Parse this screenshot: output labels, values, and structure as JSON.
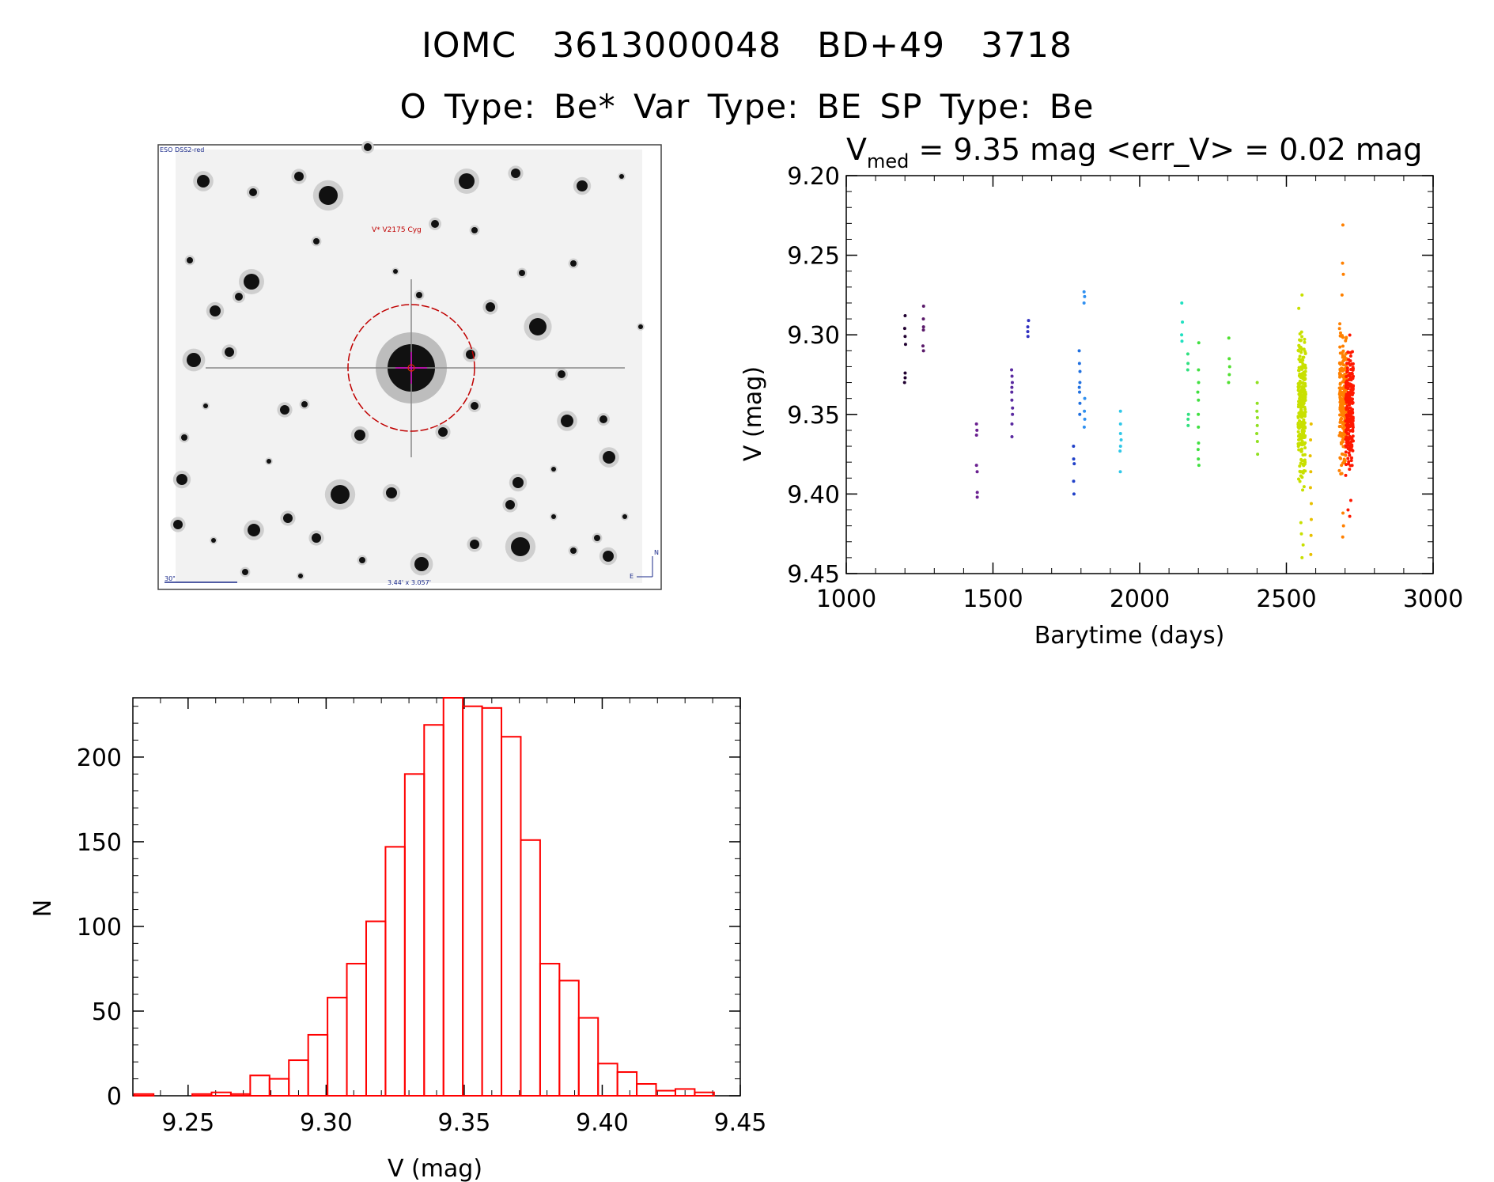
{
  "header": {
    "line1": "IOMC 3613000048   BD+49  3718",
    "line2": "O Type: Be*  Var Type: BE  SP Type: Be"
  },
  "sky_image": {
    "survey_label": "ESO DSS2-red",
    "target_label": "V* V2175 Cyg",
    "scale_label": "30\"",
    "fov_label": "3.44' x 3.057'",
    "north_label": "N",
    "east_label": "E",
    "circle_color": "#c00000"
  },
  "chart_data": [
    {
      "type": "scatter",
      "title_prefix": "V",
      "title_subscript": "med",
      "title_rest": " = 9.35 mag <err_V> = 0.02 mag",
      "xlabel": "Barytime (days)",
      "ylabel": "V (mag)",
      "xlim": [
        1000,
        3000
      ],
      "ylim": [
        9.2,
        9.45
      ],
      "y_inverted": true,
      "xticks": [
        "1000",
        "1500",
        "2000",
        "2500",
        "3000"
      ],
      "yticks": [
        "9.20",
        "9.25",
        "9.30",
        "9.35",
        "9.40",
        "9.45"
      ],
      "grid": false,
      "groups": [
        {
          "x": 1200,
          "color": "#200030",
          "y": [
            9.288,
            9.296,
            9.301,
            9.306,
            9.324,
            9.327,
            9.33
          ]
        },
        {
          "x": 1262,
          "color": "#5a1a6a",
          "y": [
            9.282,
            9.29,
            9.295,
            9.297,
            9.307,
            9.31
          ]
        },
        {
          "x": 1445,
          "color": "#6a2090",
          "y": [
            9.356,
            9.36,
            9.363,
            9.382,
            9.386,
            9.399,
            9.402
          ]
        },
        {
          "x": 1565,
          "color": "#5a2aa0",
          "y": [
            9.322,
            9.326,
            9.33,
            9.333,
            9.336,
            9.341,
            9.346,
            9.35,
            9.356,
            9.364
          ]
        },
        {
          "x": 1620,
          "color": "#3030c0",
          "y": [
            9.291,
            9.295,
            9.298,
            9.301
          ]
        },
        {
          "x": 1775,
          "color": "#2040c8",
          "y": [
            9.37,
            9.378,
            9.381,
            9.392,
            9.4
          ]
        },
        {
          "x": 1795,
          "color": "#2070e0",
          "y": [
            9.31,
            9.318,
            9.323,
            9.33,
            9.333,
            9.336,
            9.343,
            9.35
          ]
        },
        {
          "x": 1812,
          "color": "#3090f0",
          "y": [
            9.273,
            9.276,
            9.28,
            9.34,
            9.348,
            9.353,
            9.358
          ]
        },
        {
          "x": 1935,
          "color": "#30c8e8",
          "y": [
            9.348,
            9.356,
            9.362,
            9.366,
            9.37,
            9.373,
            9.386
          ]
        },
        {
          "x": 2145,
          "color": "#20e0c0",
          "y": [
            9.28,
            9.292,
            9.3,
            9.304
          ]
        },
        {
          "x": 2165,
          "color": "#30e080",
          "y": [
            9.312,
            9.318,
            9.322,
            9.35,
            9.353,
            9.357
          ]
        },
        {
          "x": 2200,
          "color": "#40e040",
          "y": [
            9.305,
            9.322,
            9.33,
            9.336,
            9.341,
            9.35,
            9.358,
            9.368,
            9.372,
            9.378,
            9.382
          ]
        },
        {
          "x": 2305,
          "color": "#50e030",
          "y": [
            9.302,
            9.315,
            9.32,
            9.325,
            9.33
          ]
        },
        {
          "x": 2400,
          "color": "#90e020",
          "y": [
            9.33,
            9.343,
            9.348,
            9.352,
            9.357,
            9.362,
            9.367,
            9.375
          ]
        },
        {
          "x": 2553,
          "color": "#c8e000",
          "dense": true,
          "ymin": 9.28,
          "ymax": 9.41,
          "n": 260,
          "outliers": [
            9.275,
            9.418,
            9.425,
            9.432,
            9.44
          ]
        },
        {
          "x": 2583,
          "color": "#e8c000",
          "y": [
            9.356,
            9.366,
            9.376,
            9.386,
            9.396,
            9.406,
            9.416,
            9.426,
            9.438
          ]
        },
        {
          "x": 2693,
          "color": "#ff8000",
          "dense": true,
          "ymin": 9.285,
          "ymax": 9.4,
          "n": 200,
          "outliers": [
            9.231,
            9.255,
            9.262,
            9.275,
            9.412,
            9.42,
            9.427
          ]
        },
        {
          "x": 2715,
          "color": "#ff1800",
          "dense": true,
          "ymin": 9.29,
          "ymax": 9.397,
          "n": 220,
          "outliers": [
            9.404,
            9.41,
            9.414
          ]
        }
      ]
    },
    {
      "type": "bar",
      "xlabel": "V (mag)",
      "ylabel": "N",
      "xlim": [
        9.23,
        9.45
      ],
      "ylim": [
        0,
        235
      ],
      "xticks": [
        "9.25",
        "9.30",
        "9.35",
        "9.40",
        "9.45"
      ],
      "yticks": [
        "0",
        "50",
        "100",
        "150",
        "200"
      ],
      "bar_color": "#ff0000",
      "bin_width": 0.007,
      "bin_start": 9.2305,
      "counts": [
        1,
        0,
        0,
        1,
        2,
        1,
        12,
        10,
        21,
        36,
        58,
        78,
        103,
        147,
        190,
        219,
        235,
        230,
        229,
        212,
        151,
        78,
        68,
        46,
        19,
        14,
        7,
        3,
        4,
        2
      ]
    }
  ]
}
